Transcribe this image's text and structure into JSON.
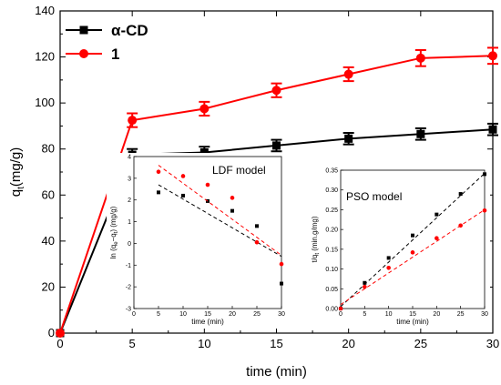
{
  "chart_data": [
    {
      "type": "line",
      "xlabel": "time (min)",
      "ylabel_main": "q",
      "ylabel_sub": "t",
      "ylabel_unit": "(mg/g)",
      "xlim": [
        0,
        30
      ],
      "ylim": [
        0,
        140
      ],
      "xticks": [
        "0",
        "5",
        "10",
        "15",
        "20",
        "25",
        "30"
      ],
      "yticks": [
        "0",
        "20",
        "40",
        "60",
        "80",
        "100",
        "120",
        "140"
      ],
      "x": [
        0,
        5,
        10,
        15,
        20,
        25,
        30
      ],
      "legend_position": "top-left",
      "series": [
        {
          "name": "α-CD",
          "marker": "square",
          "color": "#000000",
          "x": [
            0,
            5,
            10,
            15,
            20,
            25,
            30
          ],
          "y": [
            0,
            77.5,
            78.5,
            81.5,
            84.5,
            86.5,
            88.5
          ],
          "error": [
            0,
            2.5,
            2.5,
            2.5,
            2.5,
            2.5,
            2.5
          ]
        },
        {
          "name": "1",
          "marker": "circle",
          "color": "#ff0000",
          "x": [
            0,
            5,
            10,
            15,
            20,
            25,
            30
          ],
          "y": [
            0,
            92.5,
            97.5,
            105.5,
            112.5,
            119.5,
            120.5
          ],
          "error": [
            0,
            3,
            3,
            3,
            3,
            3.5,
            3.5
          ]
        }
      ]
    },
    {
      "type": "scatter",
      "title": "LDF model",
      "xlabel": "time (min)",
      "ylabel": "ln (qe−qt) (mg/g)",
      "ylabel_parts": [
        "ln (q",
        "e",
        "−q",
        "t",
        ") (mg/g)"
      ],
      "xlim": [
        0,
        30
      ],
      "ylim": [
        -3,
        4
      ],
      "xticks": [
        "0",
        "5",
        "10",
        "15",
        "20",
        "25",
        "30"
      ],
      "yticks": [
        "-3",
        "-2",
        "-1",
        "0",
        "1",
        "2",
        "3",
        "4"
      ],
      "series": [
        {
          "marker": "square",
          "color": "#000000",
          "x": [
            5,
            10,
            15,
            20,
            25,
            30
          ],
          "y": [
            2.35,
            2.2,
            1.95,
            1.5,
            0.8,
            -1.85
          ],
          "fit": [
            [
              5,
              2.7
            ],
            [
              30,
              -0.6
            ]
          ]
        },
        {
          "marker": "circle",
          "color": "#ff0000",
          "x": [
            5,
            10,
            15,
            20,
            25,
            30
          ],
          "y": [
            3.3,
            3.1,
            2.7,
            2.1,
            0.05,
            -0.95
          ],
          "fit": [
            [
              5,
              3.6
            ],
            [
              30,
              -0.55
            ]
          ]
        }
      ]
    },
    {
      "type": "scatter",
      "title": "PSO model",
      "xlabel": "time (min)",
      "ylabel": "t/qt (min.g/mg)",
      "ylabel_parts": [
        "t/q",
        "t",
        " (min.g/mg)"
      ],
      "xlim": [
        0,
        30
      ],
      "ylim": [
        0,
        0.35
      ],
      "xticks": [
        "0",
        "5",
        "10",
        "15",
        "20",
        "25",
        "30"
      ],
      "yticks": [
        "0.00",
        "0.05",
        "0.10",
        "0.15",
        "0.20",
        "0.25",
        "0.30",
        "0.35"
      ],
      "series": [
        {
          "marker": "square",
          "color": "#000000",
          "x": [
            0,
            5,
            10,
            15,
            20,
            25,
            30
          ],
          "y": [
            0,
            0.065,
            0.128,
            0.185,
            0.238,
            0.29,
            0.34
          ],
          "fit": [
            [
              0,
              0.005
            ],
            [
              30,
              0.342
            ]
          ]
        },
        {
          "marker": "circle",
          "color": "#ff0000",
          "x": [
            0,
            5,
            10,
            15,
            20,
            25,
            30
          ],
          "y": [
            0,
            0.055,
            0.103,
            0.142,
            0.178,
            0.21,
            0.248
          ],
          "fit": [
            [
              0,
              0.01
            ],
            [
              30,
              0.25
            ]
          ]
        }
      ]
    }
  ]
}
